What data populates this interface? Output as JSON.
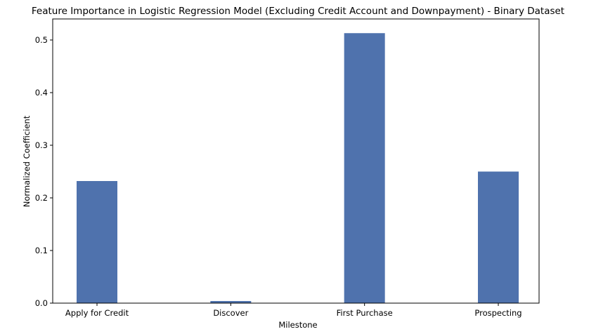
{
  "chart_data": {
    "type": "bar",
    "title": "Feature Importance in Logistic Regression Model (Excluding Credit Account and Downpayment) - Binary Dataset",
    "xlabel": "Milestone",
    "ylabel": "Normalized Coefficient",
    "categories": [
      "Apply for Credit",
      "Discover",
      "First Purchase",
      "Prospecting"
    ],
    "values": [
      0.232,
      0.004,
      0.513,
      0.25
    ],
    "ylim": [
      0,
      0.54
    ],
    "yticks": [
      0.0,
      0.1,
      0.2,
      0.3,
      0.4,
      0.5
    ],
    "ytick_labels": [
      "0.0",
      "0.1",
      "0.2",
      "0.3",
      "0.4",
      "0.5"
    ],
    "bar_color": "#4f72ad",
    "grid": false,
    "legend": "none"
  }
}
